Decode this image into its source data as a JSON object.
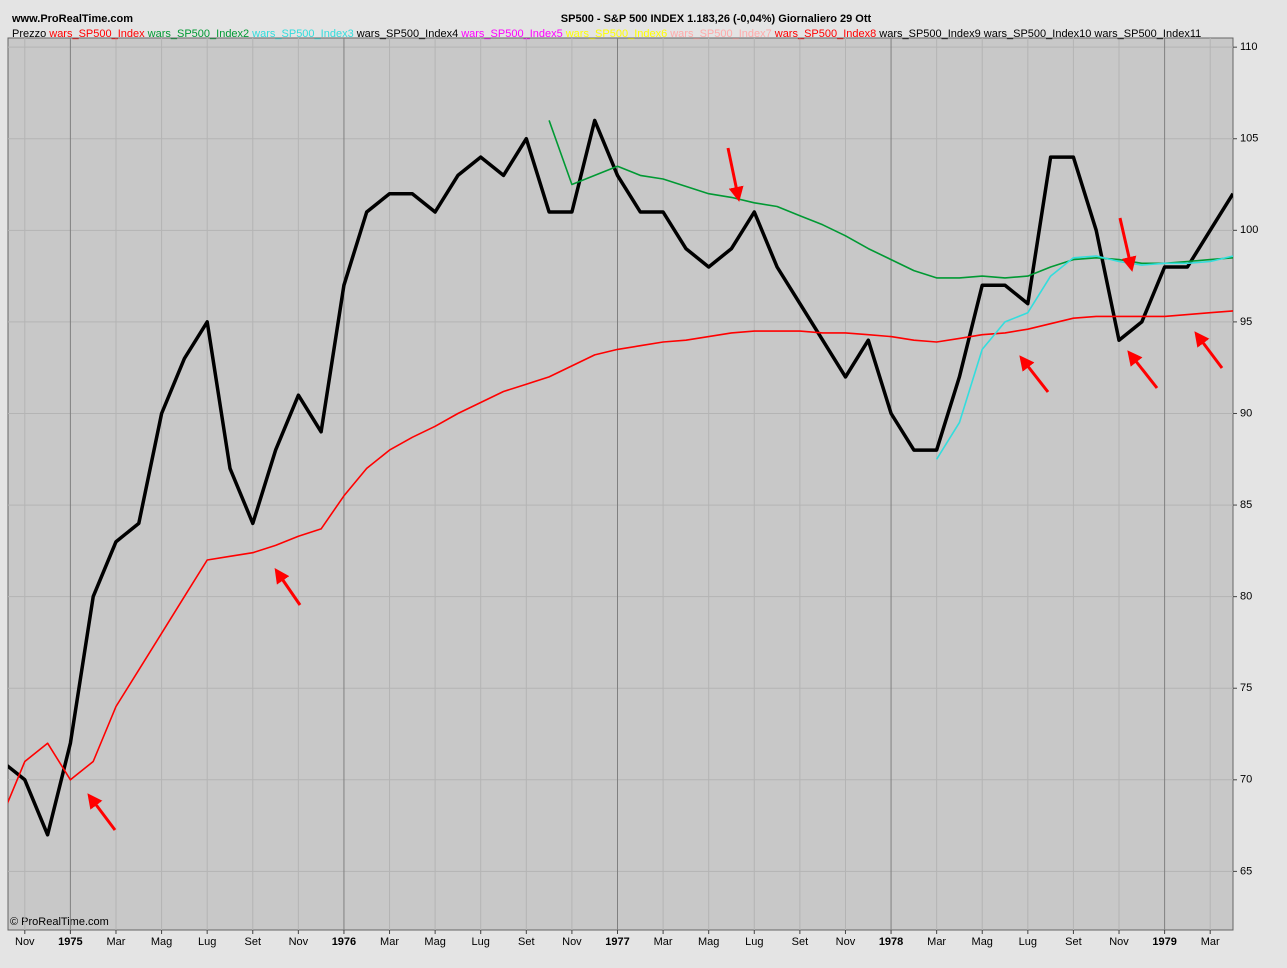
{
  "site": "www.ProRealTime.com",
  "footer": "© ProRealTime.com",
  "chart_data": {
    "type": "line",
    "title": "SP500 - S&P 500 INDEX   1.183,26 (-0,04%)   Giornaliero  29 Ott",
    "categories": [
      null,
      "Nov",
      null,
      "1975",
      null,
      "Mar",
      null,
      "Mag",
      null,
      "Lug",
      null,
      "Set",
      null,
      "Nov",
      null,
      "1976",
      null,
      "Mar",
      null,
      "Mag",
      null,
      "Lug",
      null,
      "Set",
      null,
      "Nov",
      null,
      "1977",
      null,
      "Mar",
      null,
      "Mag",
      null,
      "Lug",
      null,
      "Set",
      null,
      "Nov",
      null,
      "1978",
      null,
      "Mar",
      null,
      "Mag",
      null,
      "Lug",
      null,
      "Set",
      null,
      "Nov",
      null,
      "1979",
      null,
      "Mar",
      null
    ],
    "series": [
      {
        "name": "Prezzo",
        "color": "#000000",
        "values": [
          71,
          70,
          67,
          72,
          80,
          83,
          84,
          90,
          93,
          95,
          87,
          84,
          88,
          91,
          89,
          97,
          101,
          102,
          102,
          101,
          103,
          104,
          103,
          105,
          101,
          101,
          106,
          103,
          101,
          101,
          99,
          98,
          99,
          101,
          98,
          96,
          94,
          92,
          94,
          90,
          88,
          88,
          92,
          97,
          97,
          96,
          104,
          104,
          100,
          94,
          95,
          98,
          98,
          100,
          102
        ]
      },
      {
        "name": "wars_SP500_Index",
        "color": "#ff0000",
        "values": [
          68,
          71,
          72,
          70,
          71,
          74,
          76,
          78,
          80,
          82,
          82.2,
          82.4,
          82.8,
          83.3,
          83.7,
          85.5,
          87,
          88,
          88.7,
          89.3,
          90,
          90.6,
          91.2,
          91.6,
          92,
          92.6,
          93.2,
          93.5,
          93.7,
          93.9,
          94,
          94.2,
          94.4,
          94.5,
          94.5,
          94.5,
          94.4,
          94.4,
          94.3,
          94.2,
          94,
          93.9,
          94.1,
          94.3,
          94.4,
          94.6,
          94.9,
          95.2,
          95.3,
          95.3,
          95.3,
          95.3,
          95.4,
          95.5,
          95.6
        ]
      },
      {
        "name": "wars_SP500_Index2",
        "color": "#009933",
        "values": [
          null,
          null,
          null,
          null,
          null,
          null,
          null,
          null,
          null,
          null,
          null,
          null,
          null,
          null,
          null,
          null,
          null,
          null,
          null,
          null,
          null,
          null,
          null,
          null,
          106,
          102.5,
          103,
          103.5,
          103,
          102.8,
          102.4,
          102,
          101.8,
          101.5,
          101.3,
          100.8,
          100.3,
          99.7,
          99,
          98.4,
          97.8,
          97.4,
          97.4,
          97.5,
          97.4,
          97.5,
          98,
          98.4,
          98.5,
          98.4,
          98.2,
          98.2,
          98.3,
          98.4,
          98.5
        ]
      },
      {
        "name": "wars_SP500_Index3",
        "color": "#33dddd",
        "values": [
          null,
          null,
          null,
          null,
          null,
          null,
          null,
          null,
          null,
          null,
          null,
          null,
          null,
          null,
          null,
          null,
          null,
          null,
          null,
          null,
          null,
          null,
          null,
          null,
          null,
          null,
          null,
          null,
          null,
          null,
          null,
          null,
          null,
          null,
          null,
          null,
          null,
          null,
          null,
          null,
          null,
          87.5,
          89.5,
          93.5,
          95,
          95.5,
          97.5,
          98.5,
          98.6,
          98.3,
          98.1,
          98.2,
          98.2,
          98.3,
          98.6
        ]
      }
    ],
    "other_indicators": [
      {
        "name": "wars_SP500_Index4",
        "color": "#000000"
      },
      {
        "name": "wars_SP500_Index5",
        "color": "#ff00ff"
      },
      {
        "name": "wars_SP500_Index6",
        "color": "#ffff00"
      },
      {
        "name": "wars_SP500_Index7",
        "color": "#ffaaaa"
      },
      {
        "name": "wars_SP500_Index8",
        "color": "#ff0000"
      },
      {
        "name": "wars_SP500_Index9",
        "color": "#000000"
      },
      {
        "name": "wars_SP500_Index10",
        "color": "#000000"
      },
      {
        "name": "wars_SP500_Index11",
        "color": "#000000"
      }
    ],
    "ylim": [
      61.8,
      110.5
    ],
    "yticks": [
      65,
      70,
      75,
      80,
      85,
      90,
      95,
      100,
      105,
      110
    ],
    "grid": true
  }
}
